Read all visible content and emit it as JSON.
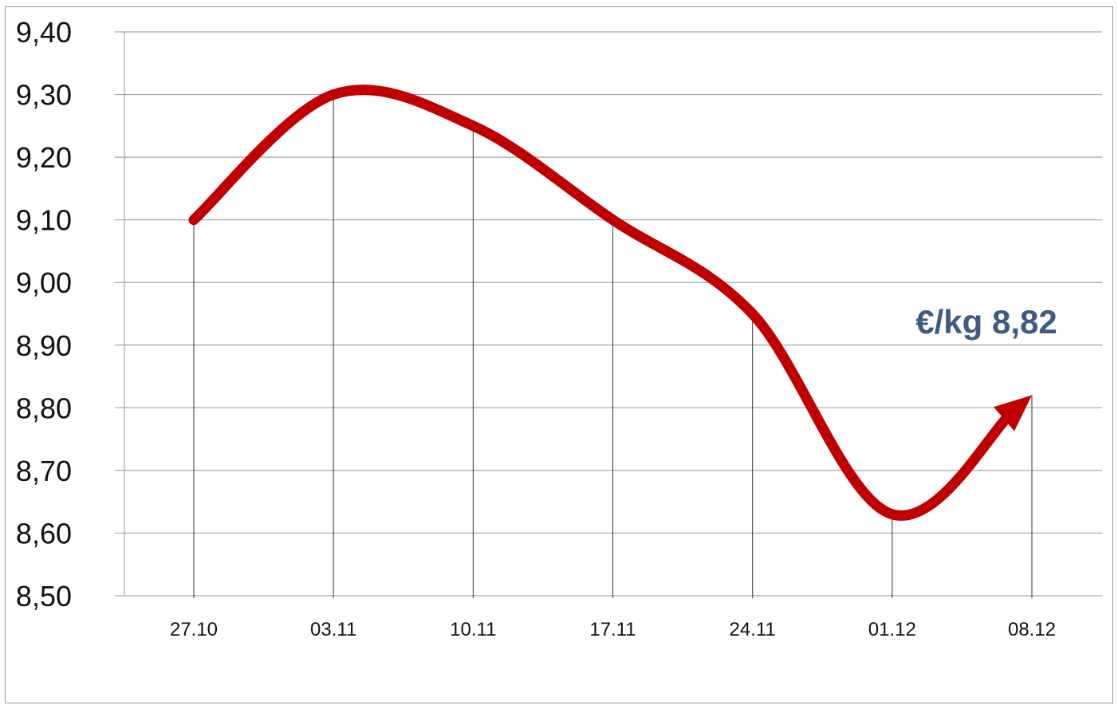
{
  "chart_data": {
    "type": "line",
    "title": "",
    "xlabel": "",
    "ylabel": "",
    "categories": [
      "27.10",
      "03.11",
      "10.11",
      "17.11",
      "24.11",
      "01.12",
      "08.12"
    ],
    "series": [
      {
        "values": [
          9.1,
          9.3,
          9.25,
          9.1,
          8.95,
          8.63,
          8.82
        ]
      }
    ],
    "ylim": [
      8.5,
      9.4
    ],
    "yticks": [
      "9,40",
      "9,30",
      "9,20",
      "9,10",
      "9,00",
      "8,90",
      "8,80",
      "8,70",
      "8,60",
      "8,50"
    ],
    "annotation": "€/kg 8,82",
    "grid": "horizontal",
    "legend": "none",
    "line_color": "#c00000",
    "annotation_color": "#3d5a80",
    "ends_with_arrow": true
  }
}
